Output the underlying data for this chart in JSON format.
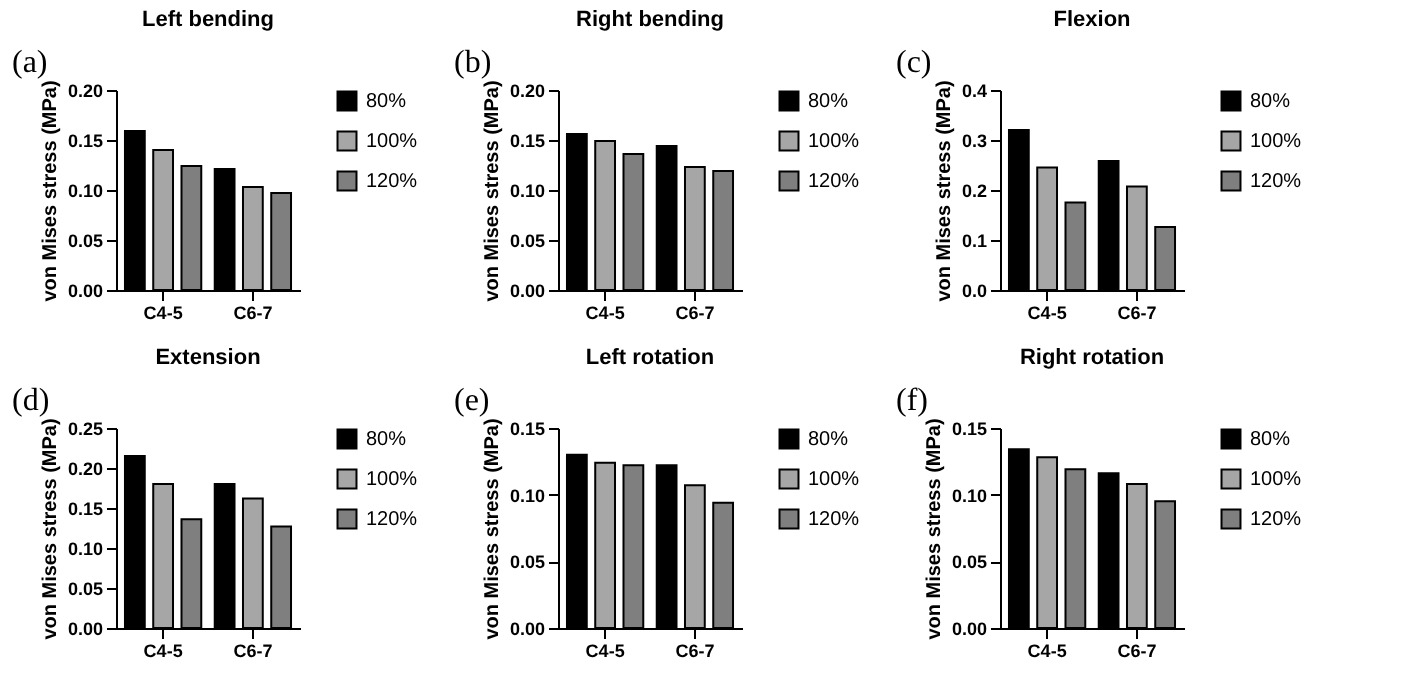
{
  "chart_data": [
    {
      "type": "bar",
      "title": "Left bending",
      "annotations": [
        "(a)"
      ],
      "ylabel": "von Mises stress (MPa)",
      "categories": [
        "C4-5",
        "C6-7"
      ],
      "ylim": [
        0,
        0.2
      ],
      "yticks": [
        {
          "value": 0,
          "label": "0.00"
        },
        {
          "value": 0.05,
          "label": "0.05"
        },
        {
          "value": 0.1,
          "label": "0.10"
        },
        {
          "value": 0.15,
          "label": "0.15"
        },
        {
          "value": 0.2,
          "label": "0.20"
        }
      ],
      "legend": "right",
      "series": [
        {
          "name": "80%",
          "color": "#000000",
          "values": [
            0.159,
            0.121
          ]
        },
        {
          "name": "100%",
          "color": "#a6a6a6",
          "values": [
            0.14,
            0.103
          ]
        },
        {
          "name": "120%",
          "color": "#7f7f7f",
          "values": [
            0.124,
            0.097
          ]
        }
      ]
    },
    {
      "type": "bar",
      "title": "Right bending",
      "annotations": [
        "(b)"
      ],
      "ylabel": "von Mises stress (MPa)",
      "categories": [
        "C4-5",
        "C6-7"
      ],
      "ylim": [
        0,
        0.2
      ],
      "yticks": [
        {
          "value": 0,
          "label": "0.00"
        },
        {
          "value": 0.05,
          "label": "0.05"
        },
        {
          "value": 0.1,
          "label": "0.10"
        },
        {
          "value": 0.15,
          "label": "0.15"
        },
        {
          "value": 0.2,
          "label": "0.20"
        }
      ],
      "legend": "right",
      "series": [
        {
          "name": "80%",
          "color": "#000000",
          "values": [
            0.156,
            0.144
          ]
        },
        {
          "name": "100%",
          "color": "#a6a6a6",
          "values": [
            0.149,
            0.123
          ]
        },
        {
          "name": "120%",
          "color": "#7f7f7f",
          "values": [
            0.136,
            0.119
          ]
        }
      ]
    },
    {
      "type": "bar",
      "title": "Flexion",
      "annotations": [
        "(c)"
      ],
      "ylabel": "von Mises stress (MPa)",
      "categories": [
        "C4-5",
        "C6-7"
      ],
      "ylim": [
        0,
        0.4
      ],
      "yticks": [
        {
          "value": 0,
          "label": "0.0"
        },
        0.1,
        0.2,
        0.3,
        0.4
      ],
      "legend": "right",
      "series": [
        {
          "name": "80%",
          "color": "#000000",
          "values": [
            0.32,
            0.258
          ]
        },
        {
          "name": "100%",
          "color": "#a6a6a6",
          "values": [
            0.245,
            0.207
          ]
        },
        {
          "name": "120%",
          "color": "#7f7f7f",
          "values": [
            0.175,
            0.126
          ]
        }
      ]
    },
    {
      "type": "bar",
      "title": "Extension",
      "annotations": [
        "(d)"
      ],
      "ylabel": "von Mises stress (MPa)",
      "categories": [
        "C4-5",
        "C6-7"
      ],
      "ylim": [
        0,
        0.25
      ],
      "yticks": [
        {
          "value": 0,
          "label": "0.00"
        },
        {
          "value": 0.05,
          "label": "0.05"
        },
        {
          "value": 0.1,
          "label": "0.10"
        },
        {
          "value": 0.15,
          "label": "0.15"
        },
        {
          "value": 0.2,
          "label": "0.20"
        },
        {
          "value": 0.25,
          "label": "0.25"
        }
      ],
      "legend": "right",
      "series": [
        {
          "name": "80%",
          "color": "#000000",
          "values": [
            0.215,
            0.18
          ]
        },
        {
          "name": "100%",
          "color": "#a6a6a6",
          "values": [
            0.18,
            0.162
          ]
        },
        {
          "name": "120%",
          "color": "#7f7f7f",
          "values": [
            0.136,
            0.127
          ]
        }
      ]
    },
    {
      "type": "bar",
      "title": "Left rotation",
      "annotations": [
        "(e)"
      ],
      "ylabel": "von Mises stress (MPa)",
      "categories": [
        "C4-5",
        "C6-7"
      ],
      "ylim": [
        0,
        0.15
      ],
      "yticks": [
        {
          "value": 0,
          "label": "0.00"
        },
        {
          "value": 0.05,
          "label": "0.05"
        },
        {
          "value": 0.1,
          "label": "0.10"
        },
        {
          "value": 0.15,
          "label": "0.15"
        }
      ],
      "legend": "right",
      "series": [
        {
          "name": "80%",
          "color": "#000000",
          "values": [
            0.13,
            0.122
          ]
        },
        {
          "name": "100%",
          "color": "#a6a6a6",
          "values": [
            0.124,
            0.107
          ]
        },
        {
          "name": "120%",
          "color": "#7f7f7f",
          "values": [
            0.122,
            0.094
          ]
        }
      ]
    },
    {
      "type": "bar",
      "title": "Right rotation",
      "annotations": [
        "(f)"
      ],
      "ylabel": "von Mises stress (MPa)",
      "categories": [
        "C4-5",
        "C6-7"
      ],
      "ylim": [
        0,
        0.15
      ],
      "yticks": [
        {
          "value": 0,
          "label": "0.00"
        },
        {
          "value": 0.05,
          "label": "0.05"
        },
        {
          "value": 0.1,
          "label": "0.10"
        },
        {
          "value": 0.15,
          "label": "0.15"
        }
      ],
      "legend": "right",
      "series": [
        {
          "name": "80%",
          "color": "#000000",
          "values": [
            0.134,
            0.116
          ]
        },
        {
          "name": "100%",
          "color": "#a6a6a6",
          "values": [
            0.128,
            0.108
          ]
        },
        {
          "name": "120%",
          "color": "#7f7f7f",
          "values": [
            0.119,
            0.095
          ]
        }
      ]
    }
  ]
}
